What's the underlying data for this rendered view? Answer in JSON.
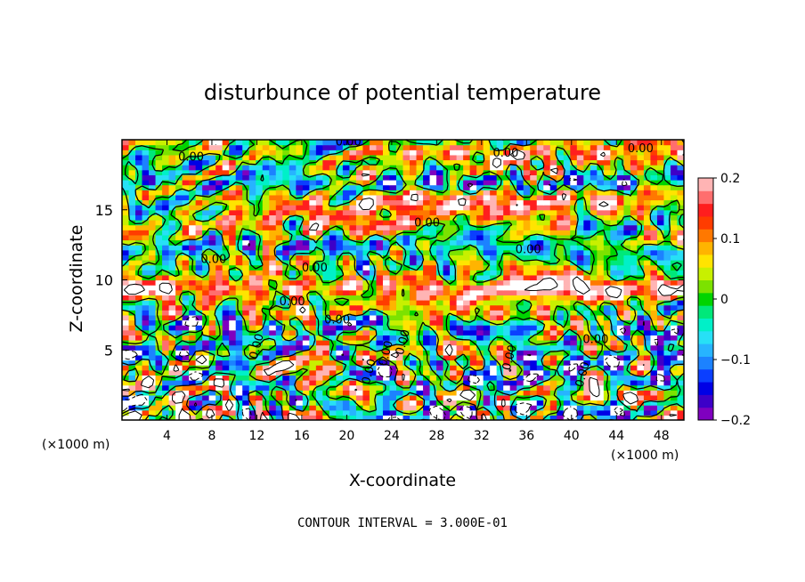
{
  "chart_data": {
    "type": "heatmap",
    "title": "disturbunce of potential temperature",
    "xlabel": "X-coordinate",
    "ylabel": "Z-coordinate",
    "x_unit_left": "(×1000 m)",
    "x_unit_right": "(×1000 m)",
    "xlim": [
      0,
      50
    ],
    "ylim": [
      0,
      20
    ],
    "x_ticks": [
      4,
      8,
      12,
      16,
      20,
      24,
      28,
      32,
      36,
      40,
      44,
      48
    ],
    "y_ticks": [
      5,
      10,
      15
    ],
    "colorbar": {
      "vmin": -0.2,
      "vmax": 0.2,
      "ticks": [
        "0.2",
        "0.1",
        "0",
        "−0.1",
        "−0.2"
      ],
      "colors": [
        "#7f00bf",
        "#3d00c8",
        "#0000e6",
        "#0b3fff",
        "#1c82ff",
        "#27b4ff",
        "#27e0f6",
        "#00f0c8",
        "#00e87a",
        "#00d400",
        "#7ce200",
        "#c8f000",
        "#ffe400",
        "#ffb400",
        "#ff7800",
        "#ff3c00",
        "#ff1e1e",
        "#ff6e6e",
        "#ffb4b4"
      ]
    },
    "contour_interval_text": "CONTOUR INTERVAL = 3.000E-01",
    "contour_labels": [
      "0.00",
      "0.00",
      "0.00",
      "0.00",
      "0.00",
      "0.00",
      "0.00",
      "0.00",
      "0.00",
      "0.00",
      "0.00",
      "0.00",
      "0.00",
      "0.00",
      "0.00",
      "0.00",
      "0.00"
    ]
  }
}
